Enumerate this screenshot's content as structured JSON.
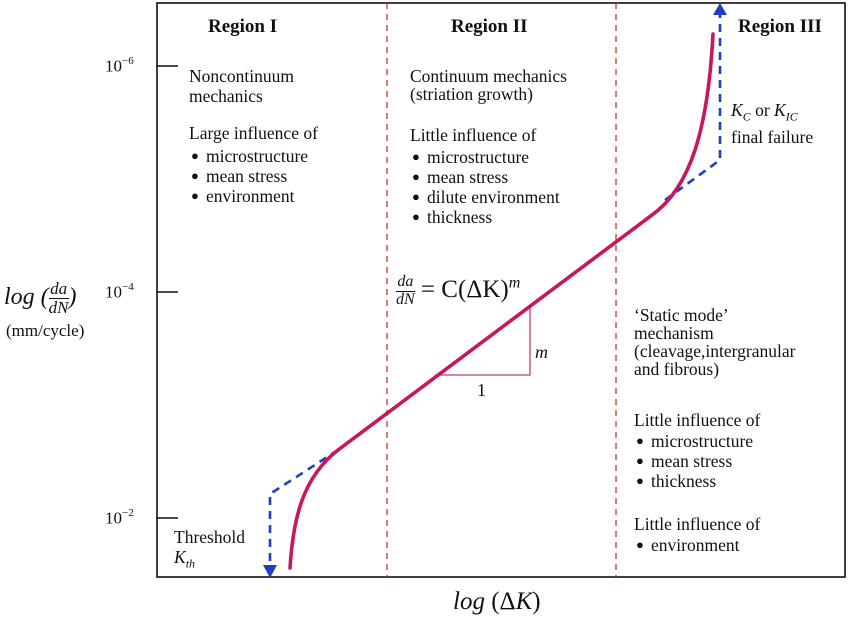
{
  "regions": [
    "Region I",
    "Region II",
    "Region III"
  ],
  "y_axis": {
    "label_log": "log (",
    "label_num": "da",
    "label_den": "dN",
    "label_close": ")",
    "units": "(mm/cycle)",
    "ticks": [
      {
        "base": "10",
        "exp": "−6"
      },
      {
        "base": "10",
        "exp": "−4"
      },
      {
        "base": "10",
        "exp": "−2"
      }
    ]
  },
  "x_axis": {
    "label": "log (ΔK)"
  },
  "region1": {
    "heading_line1": "Noncontinuum",
    "heading_line2": "mechanics",
    "influence": "Large influence of",
    "items": [
      "microstructure",
      "mean stress",
      "environment"
    ],
    "threshold_line1": "Threshold",
    "threshold_sym": "K",
    "threshold_sub": "th"
  },
  "region2": {
    "heading_line1": "Continuum mechanics",
    "heading_line2": "(striation growth)",
    "influence": "Little influence of",
    "items": [
      "microstructure",
      "mean stress",
      "dilute environment",
      "thickness"
    ],
    "equation_num": "da",
    "equation_den": "dN",
    "equation_rhs": "= C(ΔK)",
    "equation_exp": "m",
    "slope_rise": "m",
    "slope_run": "1"
  },
  "region3": {
    "kc_sym1": "K",
    "kc_sub1": "C",
    "kc_or": "or",
    "kc_sym2": "K",
    "kc_sub2": "IC",
    "final_failure": "final failure",
    "static_line1": "‘Static mode’",
    "static_line2": "mechanism",
    "static_line3": "(cleavage,intergranular",
    "static_line4": "and fibrous)",
    "influence1": "Little influence of",
    "items1": [
      "microstructure",
      "mean stress",
      "thickness"
    ],
    "influence2": "Little influence of",
    "items2": [
      "environment"
    ]
  },
  "colors": {
    "curve": "#c8175a",
    "asymptote": "#1f3fc4",
    "divider": "#c0392b",
    "slope_triangle": "#c23a86"
  }
}
